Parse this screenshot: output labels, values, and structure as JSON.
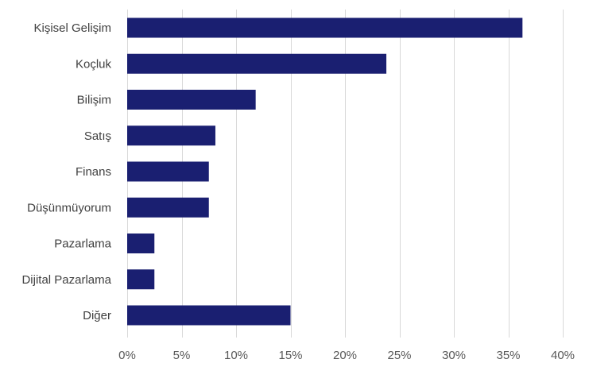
{
  "chart_data": {
    "type": "bar",
    "orientation": "horizontal",
    "title": "",
    "xlabel": "",
    "ylabel": "",
    "categories": [
      "Kişisel Gelişim",
      "Koçluk",
      "Bilişim",
      "Satış",
      "Finans",
      "Düşünmüyorum",
      "Pazarlama",
      "Dijital Pazarlama",
      "Diğer"
    ],
    "values": [
      36.3,
      23.8,
      11.8,
      8.1,
      7.5,
      7.5,
      2.5,
      2.5,
      15.0
    ],
    "value_unit": "%",
    "xlim": [
      0,
      40
    ],
    "xticks": [
      0,
      5,
      10,
      15,
      20,
      25,
      30,
      35,
      40
    ],
    "xtick_labels": [
      "0%",
      "5%",
      "10%",
      "15%",
      "20%",
      "25%",
      "30%",
      "35%",
      "40%"
    ],
    "grid": true,
    "bar_color": "#1a1f71",
    "grid_color": "#d9d9d9"
  }
}
